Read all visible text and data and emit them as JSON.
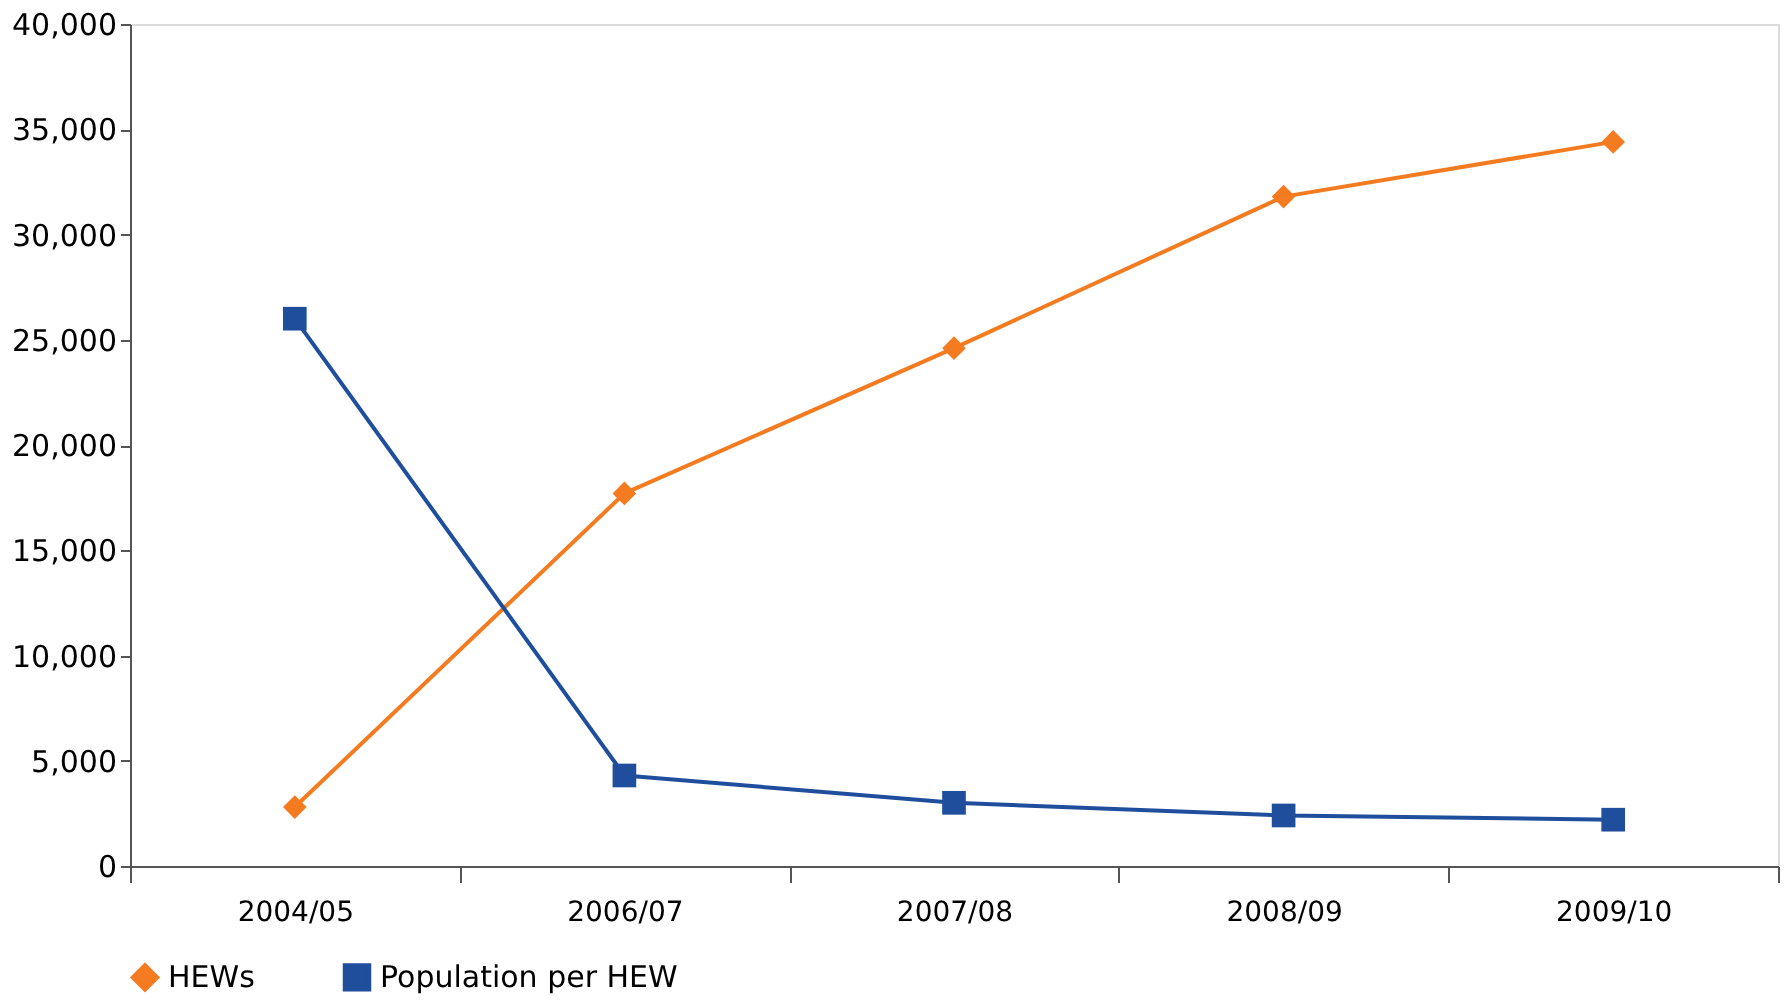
{
  "chart_data": {
    "type": "line",
    "categories": [
      "2004/05",
      "2006/07",
      "2007/08",
      "2008/09",
      "2009/10"
    ],
    "series": [
      {
        "name": "HEWs",
        "color": "#f47b20",
        "marker": "diamond",
        "values": [
          2800,
          17700,
          24600,
          31800,
          34400
        ]
      },
      {
        "name": "Population per HEW",
        "color": "#1f4e9c",
        "marker": "square",
        "values": [
          26000,
          4300,
          3000,
          2400,
          2200
        ]
      }
    ],
    "ylim": [
      0,
      40000
    ],
    "yticks": [
      {
        "value": 0,
        "label": "0"
      },
      {
        "value": 5000,
        "label": "5,000"
      },
      {
        "value": 10000,
        "label": "10,000"
      },
      {
        "value": 15000,
        "label": "15,000"
      },
      {
        "value": 20000,
        "label": "20,000"
      },
      {
        "value": 25000,
        "label": "25,000"
      },
      {
        "value": 30000,
        "label": "30,000"
      },
      {
        "value": 35000,
        "label": "35,000"
      },
      {
        "value": 40000,
        "label": "40,000"
      }
    ],
    "grid": false,
    "legend": "bottom",
    "line_style": "solid"
  }
}
